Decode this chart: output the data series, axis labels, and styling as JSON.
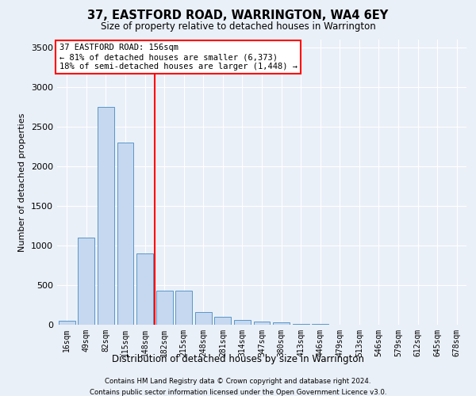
{
  "title": "37, EASTFORD ROAD, WARRINGTON, WA4 6EY",
  "subtitle": "Size of property relative to detached houses in Warrington",
  "xlabel": "Distribution of detached houses by size in Warrington",
  "ylabel": "Number of detached properties",
  "categories": [
    "16sqm",
    "49sqm",
    "82sqm",
    "115sqm",
    "148sqm",
    "182sqm",
    "215sqm",
    "248sqm",
    "281sqm",
    "314sqm",
    "347sqm",
    "380sqm",
    "413sqm",
    "446sqm",
    "479sqm",
    "513sqm",
    "546sqm",
    "579sqm",
    "612sqm",
    "645sqm",
    "678sqm"
  ],
  "values": [
    50,
    1100,
    2750,
    2300,
    900,
    430,
    430,
    165,
    100,
    65,
    45,
    30,
    15,
    10,
    5,
    3,
    2,
    1,
    1,
    0,
    0
  ],
  "bar_color": "#c5d8f0",
  "bar_edge_color": "#5a96c8",
  "vline_x_index": 4,
  "vline_color": "red",
  "annotation_title": "37 EASTFORD ROAD: 156sqm",
  "annotation_line1": "← 81% of detached houses are smaller (6,373)",
  "annotation_line2": "18% of semi-detached houses are larger (1,448) →",
  "ylim": [
    0,
    3600
  ],
  "yticks": [
    0,
    500,
    1000,
    1500,
    2000,
    2500,
    3000,
    3500
  ],
  "footer1": "Contains HM Land Registry data © Crown copyright and database right 2024.",
  "footer2": "Contains public sector information licensed under the Open Government Licence v3.0.",
  "bg_color": "#eaf0f8",
  "plot_bg_color": "#eaf0f8"
}
